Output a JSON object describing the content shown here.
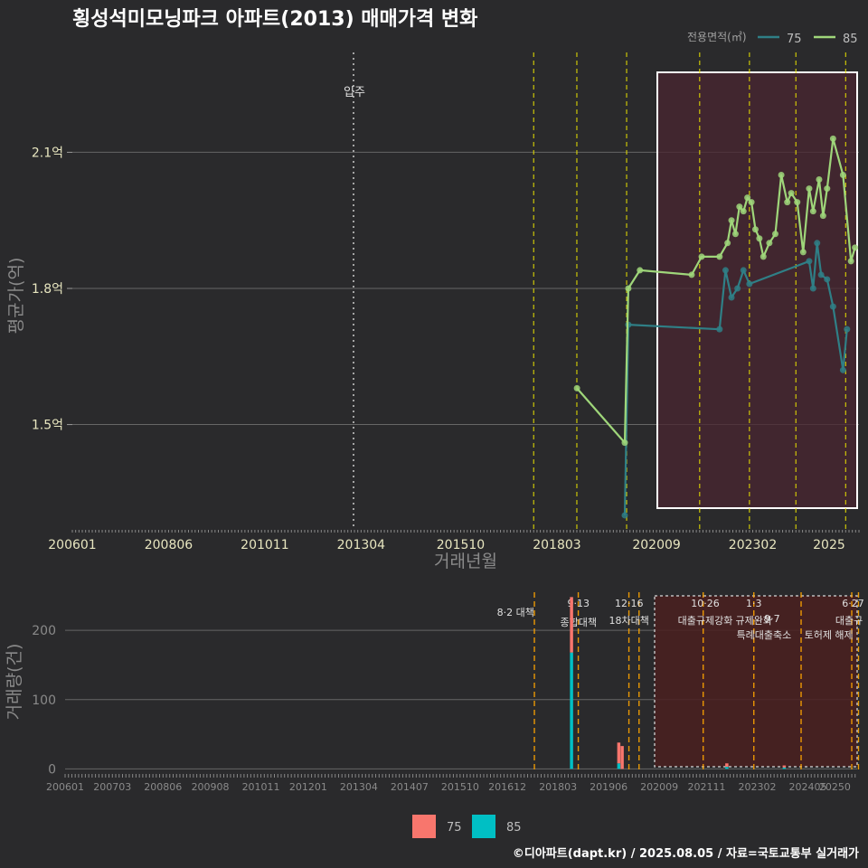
{
  "chart_data": [
    {
      "type": "line",
      "title": "횡성석미모닝파크 아파트(2013) 매매가격 변화",
      "xlabel": "거래년월",
      "ylabel": "평균가(억)",
      "ylim": [
        1.27,
        2.32
      ],
      "y_ticks": [
        {
          "value": 1.5,
          "label": "1.5억"
        },
        {
          "value": 1.8,
          "label": "1.8억"
        },
        {
          "value": 2.1,
          "label": "2.1억"
        }
      ],
      "x_tick_labels": [
        "200601",
        "200806",
        "201011",
        "201304",
        "201510",
        "201803",
        "202009",
        "202302",
        "2025"
      ],
      "legend_title": "전용면적(㎡)",
      "legend": [
        {
          "name": "75",
          "color": "#2f7f86"
        },
        {
          "name": "85",
          "color": "#9fd67a"
        }
      ],
      "event_marker": {
        "label": "입주",
        "x": "201304"
      },
      "highlight_region": {
        "from": "202011",
        "to": "2025"
      },
      "policy_lines": [
        "201708",
        "201809",
        "201912",
        "202110",
        "202301",
        "202403",
        "202506"
      ],
      "series": [
        {
          "name": "85",
          "color": "#9fd67a",
          "points": [
            {
              "x": 2018.67,
              "y": 1.58
            },
            {
              "x": 2019.87,
              "y": 1.46
            },
            {
              "x": 2019.96,
              "y": 1.8
            },
            {
              "x": 2020.25,
              "y": 1.84
            },
            {
              "x": 2021.55,
              "y": 1.83
            },
            {
              "x": 2021.8,
              "y": 1.87
            },
            {
              "x": 2022.25,
              "y": 1.87
            },
            {
              "x": 2022.45,
              "y": 1.9
            },
            {
              "x": 2022.55,
              "y": 1.95
            },
            {
              "x": 2022.65,
              "y": 1.92
            },
            {
              "x": 2022.75,
              "y": 1.98
            },
            {
              "x": 2022.85,
              "y": 1.97
            },
            {
              "x": 2022.95,
              "y": 2.0
            },
            {
              "x": 2023.05,
              "y": 1.99
            },
            {
              "x": 2023.15,
              "y": 1.93
            },
            {
              "x": 2023.25,
              "y": 1.91
            },
            {
              "x": 2023.35,
              "y": 1.87
            },
            {
              "x": 2023.5,
              "y": 1.9
            },
            {
              "x": 2023.65,
              "y": 1.92
            },
            {
              "x": 2023.8,
              "y": 2.05
            },
            {
              "x": 2023.95,
              "y": 1.99
            },
            {
              "x": 2024.05,
              "y": 2.01
            },
            {
              "x": 2024.2,
              "y": 1.99
            },
            {
              "x": 2024.35,
              "y": 1.88
            },
            {
              "x": 2024.5,
              "y": 2.02
            },
            {
              "x": 2024.6,
              "y": 1.97
            },
            {
              "x": 2024.75,
              "y": 2.04
            },
            {
              "x": 2024.85,
              "y": 1.96
            },
            {
              "x": 2024.95,
              "y": 2.02
            },
            {
              "x": 2025.1,
              "y": 2.13
            },
            {
              "x": 2025.35,
              "y": 2.05
            },
            {
              "x": 2025.55,
              "y": 1.86
            },
            {
              "x": 2025.65,
              "y": 1.89
            }
          ]
        },
        {
          "name": "75",
          "color": "#2f7f86",
          "points": [
            {
              "x": 2019.87,
              "y": 1.3
            },
            {
              "x": 2019.96,
              "y": 1.72
            },
            {
              "x": 2022.25,
              "y": 1.71
            },
            {
              "x": 2022.4,
              "y": 1.84
            },
            {
              "x": 2022.55,
              "y": 1.78
            },
            {
              "x": 2022.7,
              "y": 1.8
            },
            {
              "x": 2022.85,
              "y": 1.84
            },
            {
              "x": 2023.0,
              "y": 1.81
            },
            {
              "x": 2024.5,
              "y": 1.86
            },
            {
              "x": 2024.6,
              "y": 1.8
            },
            {
              "x": 2024.7,
              "y": 1.9
            },
            {
              "x": 2024.8,
              "y": 1.83
            },
            {
              "x": 2024.95,
              "y": 1.82
            },
            {
              "x": 2025.1,
              "y": 1.76
            },
            {
              "x": 2025.35,
              "y": 1.62
            },
            {
              "x": 2025.45,
              "y": 1.71
            }
          ]
        }
      ]
    },
    {
      "type": "bar",
      "ylabel": "거래량(건)",
      "ylim": [
        -6,
        255
      ],
      "y_ticks": [
        {
          "value": 0,
          "label": "0"
        },
        {
          "value": 100,
          "label": "100"
        },
        {
          "value": 200,
          "label": "200"
        }
      ],
      "x_tick_labels": [
        "200601",
        "200703",
        "200806",
        "200908",
        "201011",
        "201201",
        "201304",
        "201407",
        "201510",
        "201612",
        "201803",
        "201906",
        "202009",
        "202111",
        "202302",
        "202405",
        "20250"
      ],
      "legend": [
        {
          "name": "75",
          "color": "#f8766d"
        },
        {
          "name": "85",
          "color": "#00bfc4"
        }
      ],
      "highlight_region": {
        "from": "202011",
        "to": "2025"
      },
      "policy_annotations": [
        {
          "date": "8·2",
          "text": "8·2 대책"
        },
        {
          "date": "9·13",
          "text": "종합대책"
        },
        {
          "date": "12·16",
          "text": "18차대책"
        },
        {
          "date": "10·26",
          "text": "대출규제강화"
        },
        {
          "date": "1·3",
          "text": "규제완화"
        },
        {
          "date": "9·7",
          "text": "특례대출축소"
        },
        {
          "date": "6·27",
          "text": "대출규"
        },
        {
          "date": "",
          "text": "토허제 해제"
        }
      ],
      "stacks": [
        {
          "x": "201807",
          "v85": 168,
          "v75": 80
        },
        {
          "x": "201909",
          "v85": 8,
          "v75": 30
        },
        {
          "x": "201910",
          "v85": 0,
          "v75": 33
        },
        {
          "x": "202205",
          "v85": 3,
          "v75": 5
        },
        {
          "x": "202310",
          "v85": 2,
          "v75": 3
        }
      ]
    }
  ],
  "caption": "©디아파트(dapt.kr) / 2025.08.05 / 자료=국토교통부 실거래가"
}
